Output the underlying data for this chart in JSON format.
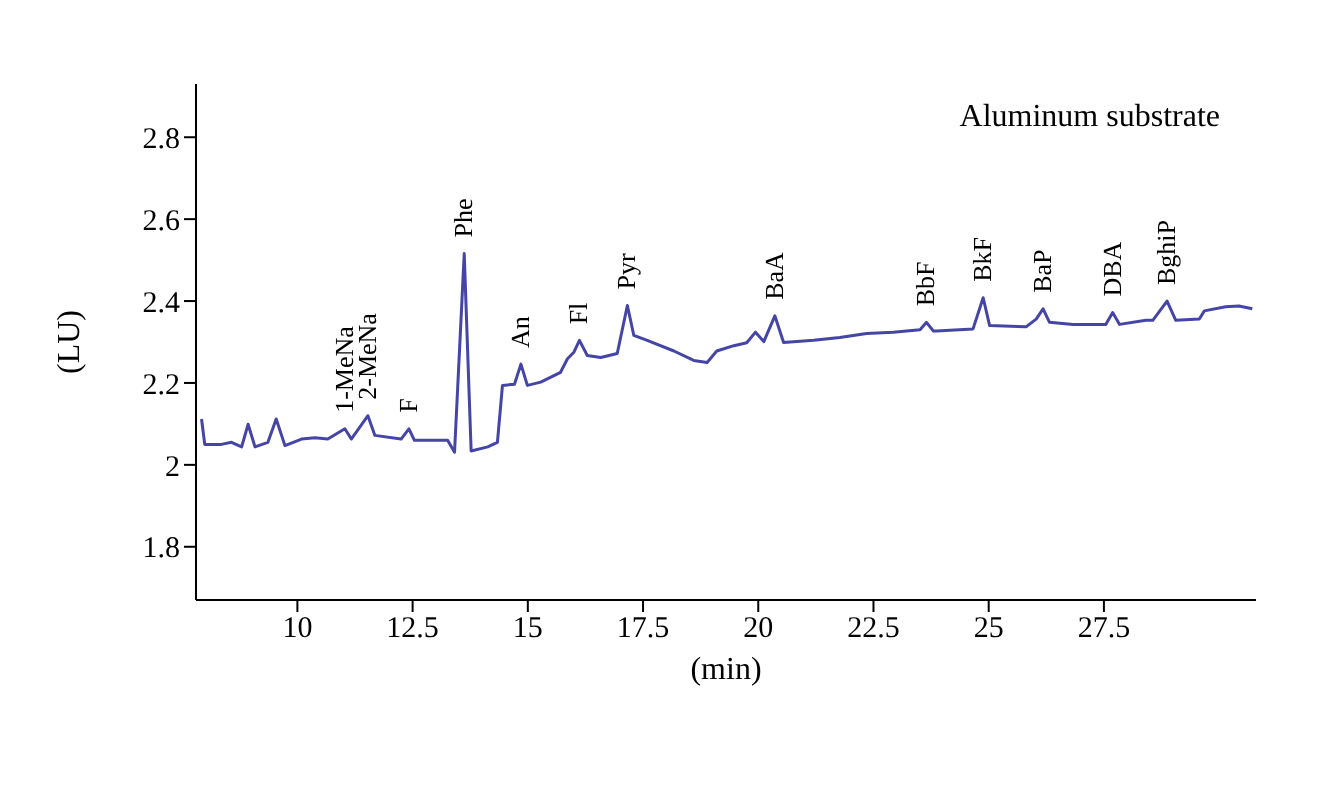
{
  "chart_data": {
    "type": "line",
    "xlabel": "(min)",
    "ylabel": "(LU)",
    "annotations": [
      "Aluminum substrate",
      {
        "text": "1-MeNa",
        "x": 11.03,
        "y": 2.088
      },
      {
        "text": "2-MeNa",
        "x": 11.53,
        "y": 2.12
      },
      {
        "text": "F",
        "x": 12.42,
        "y": 2.088
      },
      {
        "text": "Phe",
        "x": 13.62,
        "y": 2.516
      },
      {
        "text": "An",
        "x": 14.85,
        "y": 2.246
      },
      {
        "text": "Fl",
        "x": 16.12,
        "y": 2.304
      },
      {
        "text": "Pyr",
        "x": 17.16,
        "y": 2.389
      },
      {
        "text": "BaA",
        "x": 20.36,
        "y": 2.364
      },
      {
        "text": "BbF",
        "x": 23.65,
        "y": 2.348
      },
      {
        "text": "BkF",
        "x": 24.88,
        "y": 2.408
      },
      {
        "text": "BaP",
        "x": 26.18,
        "y": 2.381
      },
      {
        "text": "DBA",
        "x": 27.69,
        "y": 2.372
      },
      {
        "text": "BghiP",
        "x": 28.87,
        "y": 2.4
      }
    ],
    "x": [
      7.92,
      7.99,
      8.35,
      8.57,
      8.79,
      8.93,
      9.08,
      9.36,
      9.54,
      9.73,
      10.09,
      10.38,
      10.66,
      11.03,
      11.17,
      11.53,
      11.68,
      12.25,
      12.42,
      12.54,
      13.26,
      13.41,
      13.62,
      13.77,
      14.13,
      14.34,
      14.45,
      14.71,
      14.85,
      14.99,
      15.28,
      15.71,
      15.86,
      16.0,
      16.12,
      16.29,
      16.58,
      16.94,
      17.16,
      17.3,
      17.59,
      18.17,
      18.6,
      18.89,
      19.1,
      19.47,
      19.75,
      19.94,
      20.12,
      20.36,
      20.55,
      21.2,
      21.77,
      22.35,
      22.93,
      23.51,
      23.65,
      23.8,
      23.87,
      24.66,
      24.88,
      25.02,
      25.81,
      26.03,
      26.18,
      26.32,
      26.83,
      27.54,
      27.69,
      27.84,
      28.41,
      28.56,
      28.87,
      29.06,
      29.57,
      29.68,
      30.14,
      30.43,
      30.72
    ],
    "series": [
      {
        "color": "#4545a8",
        "values": [
          2.112,
          2.05,
          2.05,
          2.055,
          2.044,
          2.099,
          2.044,
          2.055,
          2.112,
          2.047,
          2.063,
          2.066,
          2.063,
          2.088,
          2.063,
          2.12,
          2.072,
          2.063,
          2.088,
          2.06,
          2.06,
          2.031,
          2.516,
          2.034,
          2.044,
          2.055,
          2.194,
          2.197,
          2.246,
          2.194,
          2.202,
          2.226,
          2.259,
          2.275,
          2.304,
          2.267,
          2.262,
          2.272,
          2.389,
          2.316,
          2.304,
          2.278,
          2.255,
          2.25,
          2.278,
          2.291,
          2.298,
          2.324,
          2.301,
          2.364,
          2.299,
          2.304,
          2.311,
          2.321,
          2.324,
          2.33,
          2.348,
          2.327,
          2.327,
          2.332,
          2.408,
          2.34,
          2.337,
          2.356,
          2.381,
          2.348,
          2.343,
          2.343,
          2.372,
          2.343,
          2.353,
          2.353,
          2.4,
          2.353,
          2.356,
          2.376,
          2.386,
          2.388,
          2.381
        ]
      }
    ],
    "xlim": [
      7.8,
      30.8
    ],
    "xticks": [
      10,
      12.5,
      15,
      17.5,
      20,
      22.5,
      25,
      27.5
    ],
    "ylim": [
      1.67,
      2.93
    ],
    "yticks": [
      1.8,
      2,
      2.2,
      2.4,
      2.6,
      2.8
    ],
    "grid": false,
    "legend": false,
    "marker": "none",
    "line_style": "solid"
  }
}
